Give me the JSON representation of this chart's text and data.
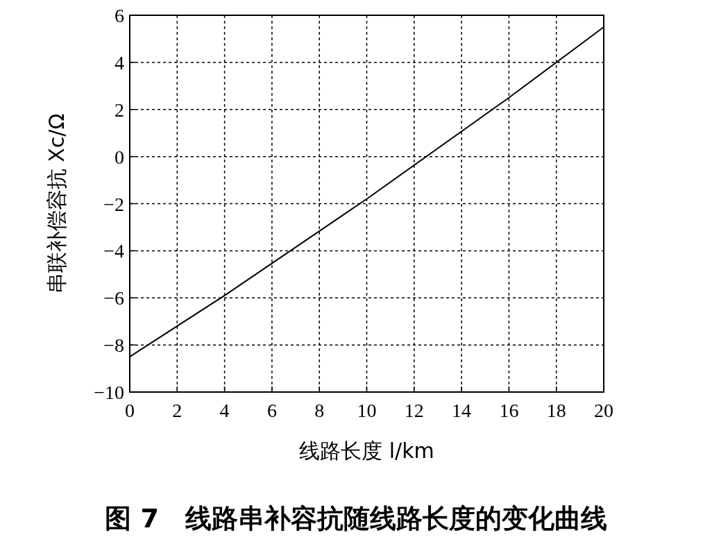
{
  "chart_data": {
    "type": "line",
    "title": "图 7　线路串补容抗随线路长度的变化曲线",
    "xlabel": "线路长度 l/km",
    "ylabel": "串联补偿容抗 Xc/Ω",
    "x": [
      0,
      4,
      10,
      16,
      20
    ],
    "series": [
      {
        "color": "#000000",
        "values": [
          -8.5,
          -5.9,
          -1.8,
          2.5,
          5.5
        ]
      }
    ],
    "xlim": [
      0,
      20
    ],
    "xticks": [
      0,
      2,
      4,
      6,
      8,
      10,
      12,
      14,
      16,
      18,
      20
    ],
    "ylim": [
      -10,
      6
    ],
    "yticks": [
      -10,
      -8,
      -6,
      -4,
      -2,
      0,
      2,
      4,
      6
    ],
    "grid": true,
    "line_style": "solid",
    "marker": "none"
  }
}
